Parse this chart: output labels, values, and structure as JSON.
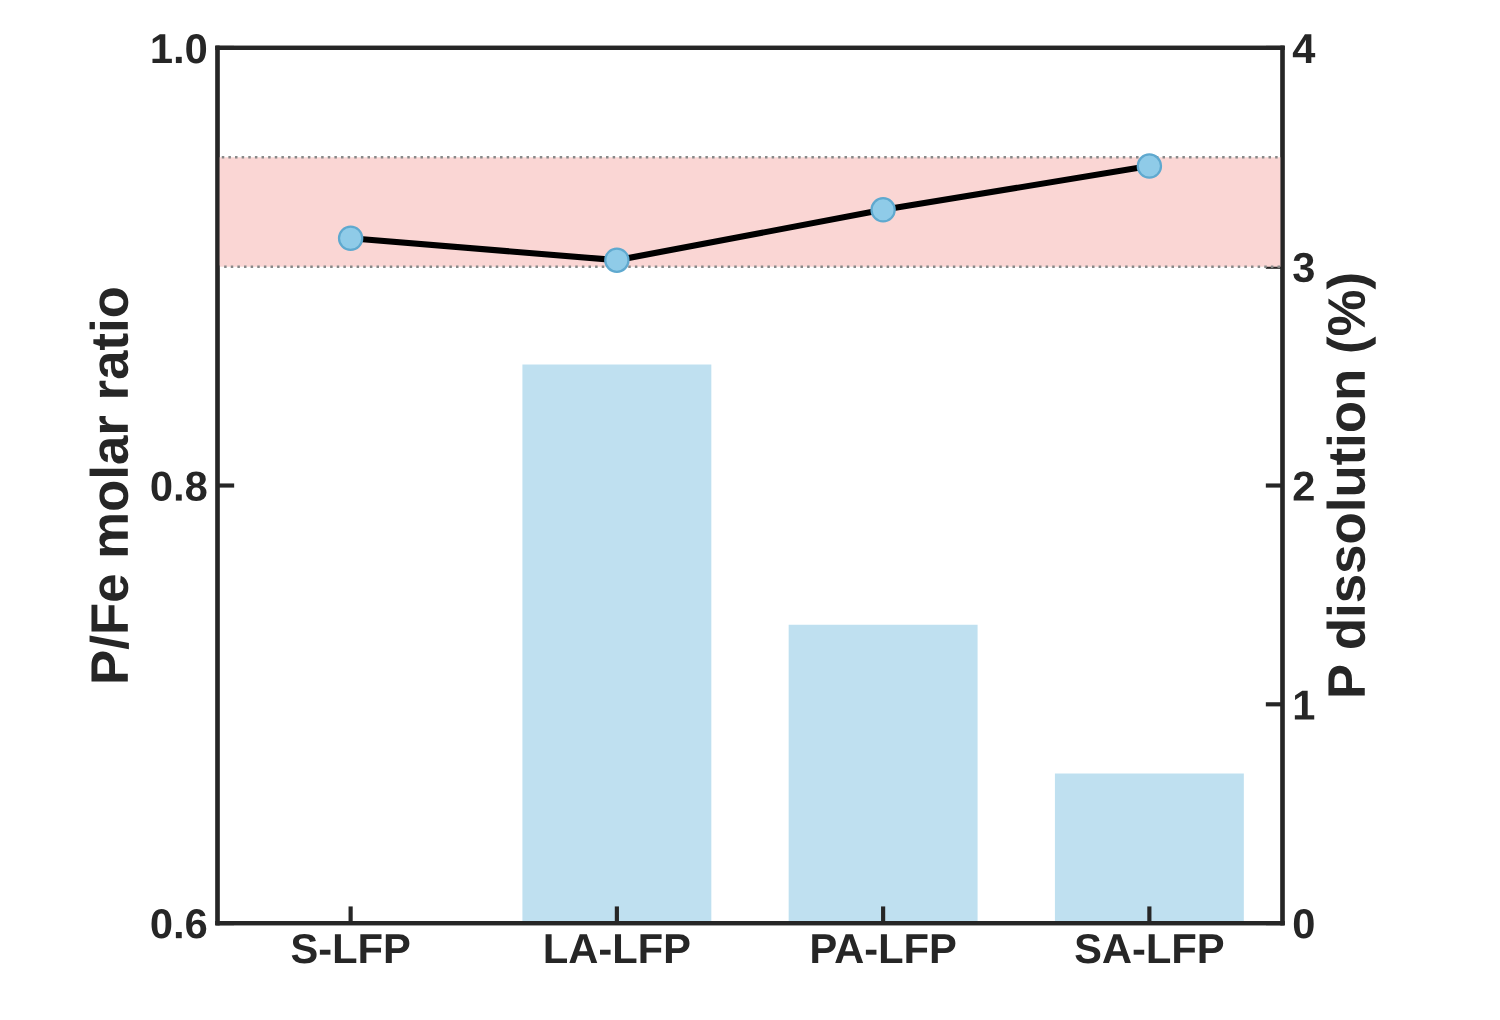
{
  "chart_data": {
    "type": "bar",
    "categories": [
      "S-LFP",
      "LA-LFP",
      "PA-LFP",
      "SA-LFP"
    ],
    "ylabel": "P/Fe molar ratio",
    "y2label": "P dissolution (%)",
    "series": [
      {
        "axis": "y2",
        "color": "#bfe0f0",
        "values": [
          null,
          2.56,
          1.37,
          0.69
        ]
      },
      {
        "type": "line",
        "axis": "y",
        "color": "#000000",
        "colors": [
          "#8fcbe8",
          "#8fcbe8",
          "#8fcbe8",
          "#8fcbe8"
        ],
        "marker": "circle",
        "line_style": "solid",
        "values": [
          0.913,
          0.903,
          0.926,
          0.946
        ]
      }
    ],
    "ylim": [
      0.6,
      1.0
    ],
    "yticks": [
      0.6,
      0.8,
      {
        "value": 1.0,
        "label": "1.0"
      }
    ],
    "y2lim": [
      0,
      4
    ],
    "y2ticks": [
      0,
      1,
      2,
      3,
      4
    ],
    "bands": [
      {
        "axis": "y",
        "from": 0.9,
        "to": 0.95,
        "color": "#fad6d4"
      }
    ],
    "grid": false,
    "legend": false
  }
}
